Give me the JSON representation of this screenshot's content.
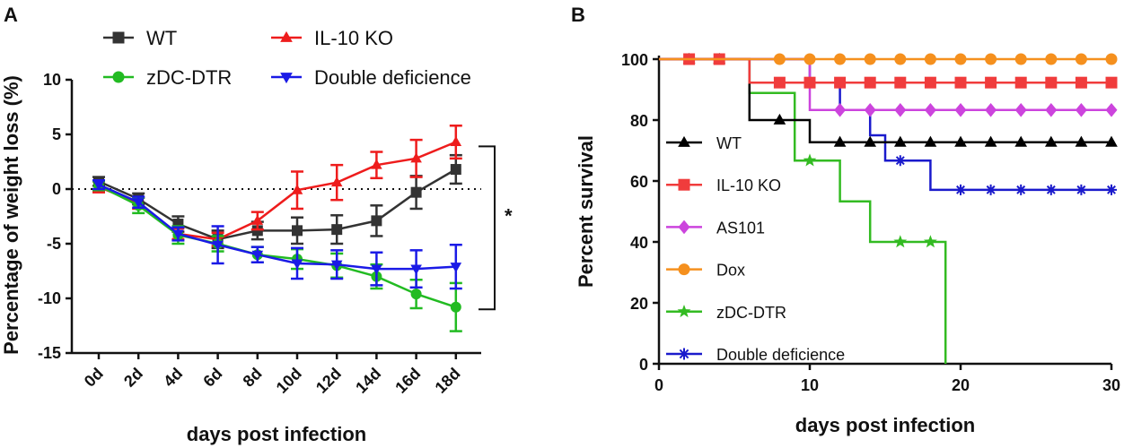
{
  "figure": {
    "panel_a_label": "A",
    "panel_b_label": "B"
  },
  "chart_data": [
    {
      "type": "line",
      "panel": "A",
      "title": "",
      "xlabel": "days post infection",
      "ylabel": "Percentage of weight loss (%)",
      "categories": [
        "0d",
        "2d",
        "4d",
        "6d",
        "8d",
        "10d",
        "12d",
        "14d",
        "16d",
        "18d"
      ],
      "ylim": [
        -15,
        10
      ],
      "yticks": [
        10,
        5,
        0,
        -5,
        -10,
        -15
      ],
      "reference_line": 0,
      "significance": "*",
      "legend_position": "top",
      "series": [
        {
          "name": "WT",
          "color": "#333333",
          "marker": "square",
          "values": [
            0.7,
            -0.9,
            -3.2,
            -4.6,
            -3.8,
            -3.8,
            -3.7,
            -2.9,
            -0.3,
            1.8
          ],
          "errors": [
            0.4,
            0.5,
            0.7,
            0.8,
            0.8,
            1.2,
            1.3,
            1.4,
            1.5,
            1.3
          ]
        },
        {
          "name": "IL-10 KO",
          "color": "#ee1c1c",
          "marker": "triangle-up",
          "values": [
            0.2,
            -1.3,
            -4.1,
            -4.6,
            -2.9,
            -0.1,
            0.6,
            2.2,
            2.8,
            4.3
          ],
          "errors": [
            0.5,
            0.5,
            0.5,
            0.6,
            0.8,
            1.7,
            1.6,
            1.2,
            1.7,
            1.5
          ]
        },
        {
          "name": "zDC-DTR",
          "color": "#22bb22",
          "marker": "circle",
          "values": [
            0.3,
            -1.5,
            -4.2,
            -5.0,
            -6.0,
            -6.4,
            -7.0,
            -8.0,
            -9.6,
            -10.8
          ],
          "errors": [
            0.4,
            0.7,
            0.8,
            0.7,
            0.7,
            0.9,
            1.1,
            1.1,
            1.3,
            2.2
          ]
        },
        {
          "name": "Double deficience",
          "color": "#1a1ae6",
          "marker": "triangle-down",
          "values": [
            0.4,
            -1.2,
            -4.1,
            -5.1,
            -6.0,
            -6.8,
            -6.9,
            -7.3,
            -7.3,
            -7.1
          ],
          "errors": [
            0.4,
            0.5,
            0.6,
            1.7,
            0.7,
            1.4,
            1.3,
            1.5,
            1.7,
            2.0
          ]
        }
      ]
    },
    {
      "type": "line",
      "panel": "B",
      "title": "",
      "xlabel": "days post infection",
      "ylabel": "Percent survival",
      "xlim": [
        0,
        30
      ],
      "ylim": [
        0,
        100
      ],
      "xticks": [
        0,
        10,
        20,
        30
      ],
      "yticks": [
        0,
        20,
        40,
        60,
        80,
        100
      ],
      "step": true,
      "legend_position": "left",
      "series": [
        {
          "name": "WT",
          "color": "#000000",
          "marker": "triangle-up",
          "steps": [
            [
              0,
              100
            ],
            [
              6,
              100
            ],
            [
              6,
              80
            ],
            [
              10,
              80
            ],
            [
              10,
              72.7
            ],
            [
              30,
              72.7
            ]
          ],
          "markers": [
            [
              2,
              100
            ],
            [
              4,
              100
            ],
            [
              8,
              80
            ],
            [
              12,
              72.7
            ],
            [
              14,
              72.7
            ],
            [
              16,
              72.7
            ],
            [
              18,
              72.7
            ],
            [
              20,
              72.7
            ],
            [
              22,
              72.7
            ],
            [
              24,
              72.7
            ],
            [
              26,
              72.7
            ],
            [
              28,
              72.7
            ],
            [
              30,
              72.7
            ]
          ]
        },
        {
          "name": "IL-10 KO",
          "color": "#f03c3c",
          "marker": "square",
          "steps": [
            [
              0,
              100
            ],
            [
              6,
              100
            ],
            [
              6,
              92.3
            ],
            [
              30,
              92.3
            ]
          ],
          "markers": [
            [
              2,
              100
            ],
            [
              4,
              100
            ],
            [
              8,
              92.3
            ],
            [
              10,
              92.3
            ],
            [
              12,
              92.3
            ],
            [
              14,
              92.3
            ],
            [
              16,
              92.3
            ],
            [
              18,
              92.3
            ],
            [
              20,
              92.3
            ],
            [
              22,
              92.3
            ],
            [
              24,
              92.3
            ],
            [
              26,
              92.3
            ],
            [
              28,
              92.3
            ],
            [
              30,
              92.3
            ]
          ]
        },
        {
          "name": "AS101",
          "color": "#cc44dd",
          "marker": "diamond",
          "steps": [
            [
              0,
              100
            ],
            [
              10,
              100
            ],
            [
              10,
              83.3
            ],
            [
              30,
              83.3
            ]
          ],
          "markers": [
            [
              12,
              83.3
            ],
            [
              14,
              83.3
            ],
            [
              16,
              83.3
            ],
            [
              18,
              83.3
            ],
            [
              20,
              83.3
            ],
            [
              22,
              83.3
            ],
            [
              24,
              83.3
            ],
            [
              26,
              83.3
            ],
            [
              28,
              83.3
            ],
            [
              30,
              83.3
            ]
          ]
        },
        {
          "name": "Dox",
          "color": "#f5901e",
          "marker": "circle",
          "steps": [
            [
              0,
              100
            ],
            [
              30,
              100
            ]
          ],
          "markers": [
            [
              8,
              100
            ],
            [
              10,
              100
            ],
            [
              12,
              100
            ],
            [
              14,
              100
            ],
            [
              16,
              100
            ],
            [
              18,
              100
            ],
            [
              20,
              100
            ],
            [
              22,
              100
            ],
            [
              24,
              100
            ],
            [
              26,
              100
            ],
            [
              28,
              100
            ],
            [
              30,
              100
            ]
          ]
        },
        {
          "name": "zDC-DTR",
          "color": "#33bb22",
          "marker": "star",
          "steps": [
            [
              0,
              100
            ],
            [
              6,
              100
            ],
            [
              6,
              88.9
            ],
            [
              9,
              88.9
            ],
            [
              9,
              66.7
            ],
            [
              12,
              66.7
            ],
            [
              12,
              53.3
            ],
            [
              14,
              53.3
            ],
            [
              14,
              40
            ],
            [
              19,
              40
            ],
            [
              19,
              0
            ]
          ],
          "markers": [
            [
              10,
              66.7
            ],
            [
              16,
              40
            ],
            [
              18,
              40
            ]
          ]
        },
        {
          "name": "Double deficience",
          "color": "#1a1acc",
          "marker": "asterisk",
          "steps": [
            [
              0,
              100
            ],
            [
              10,
              100
            ],
            [
              10,
              92.3
            ],
            [
              12,
              92.3
            ],
            [
              12,
              83.3
            ],
            [
              14,
              83.3
            ],
            [
              14,
              75
            ],
            [
              15,
              75
            ],
            [
              15,
              66.7
            ],
            [
              18,
              66.7
            ],
            [
              18,
              57.1
            ],
            [
              30,
              57.1
            ]
          ],
          "markers": [
            [
              10,
              100
            ],
            [
              16,
              66.7
            ],
            [
              20,
              57.1
            ],
            [
              22,
              57.1
            ],
            [
              24,
              57.1
            ],
            [
              26,
              57.1
            ],
            [
              28,
              57.1
            ],
            [
              30,
              57.1
            ]
          ]
        }
      ]
    }
  ]
}
